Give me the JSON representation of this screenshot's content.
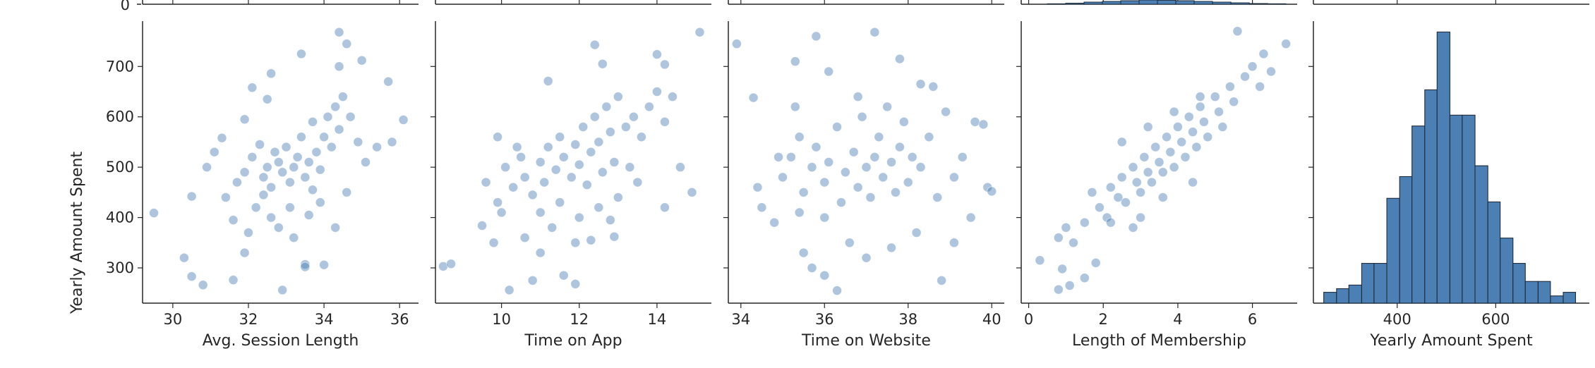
{
  "chart_data": {
    "type": "scatter",
    "ylabel": "Yearly Amount Spent",
    "yticks": [
      300,
      400,
      500,
      600,
      700
    ],
    "ylim": [
      230,
      790
    ],
    "top_row": {
      "visible_tick": "0"
    },
    "point_color": "#4c7fb4",
    "hist_color": "#4c7fb4",
    "panels": [
      {
        "kind": "scatter",
        "xlabel": "Avg. Session Length",
        "xlim": [
          29.2,
          36.5
        ],
        "xticks": [
          "30",
          "32",
          "34",
          "36"
        ],
        "xtick_values": [
          30,
          32,
          34,
          36
        ],
        "points": [
          [
            29.5,
            409
          ],
          [
            30.3,
            320
          ],
          [
            30.5,
            283
          ],
          [
            30.8,
            266
          ],
          [
            31.6,
            276
          ],
          [
            31.9,
            330
          ],
          [
            32.9,
            256
          ],
          [
            33.5,
            307
          ],
          [
            33.5,
            302
          ],
          [
            34.0,
            306
          ],
          [
            31.4,
            440
          ],
          [
            31.7,
            470
          ],
          [
            31.9,
            490
          ],
          [
            32.1,
            520
          ],
          [
            32.3,
            545
          ],
          [
            32.4,
            480
          ],
          [
            32.5,
            500
          ],
          [
            32.6,
            460
          ],
          [
            32.7,
            530
          ],
          [
            32.8,
            510
          ],
          [
            32.9,
            490
          ],
          [
            33.0,
            540
          ],
          [
            33.1,
            470
          ],
          [
            33.2,
            500
          ],
          [
            33.3,
            520
          ],
          [
            33.4,
            560
          ],
          [
            33.5,
            480
          ],
          [
            33.6,
            510
          ],
          [
            33.7,
            590
          ],
          [
            33.8,
            530
          ],
          [
            33.9,
            495
          ],
          [
            34.0,
            560
          ],
          [
            34.1,
            600
          ],
          [
            34.2,
            540
          ],
          [
            34.3,
            620
          ],
          [
            34.4,
            575
          ],
          [
            34.5,
            640
          ],
          [
            34.7,
            600
          ],
          [
            34.9,
            550
          ],
          [
            35.1,
            510
          ],
          [
            35.4,
            540
          ],
          [
            35.7,
            670
          ],
          [
            35.8,
            550
          ],
          [
            36.1,
            594
          ],
          [
            34.4,
            768
          ],
          [
            34.6,
            745
          ],
          [
            34.4,
            700
          ],
          [
            35.0,
            712
          ],
          [
            33.4,
            725
          ],
          [
            32.6,
            686
          ],
          [
            32.1,
            658
          ],
          [
            32.5,
            635
          ],
          [
            31.9,
            595
          ],
          [
            31.3,
            558
          ],
          [
            31.1,
            530
          ],
          [
            30.9,
            500
          ],
          [
            30.5,
            442
          ],
          [
            32.2,
            420
          ],
          [
            32.6,
            400
          ],
          [
            32.8,
            380
          ],
          [
            33.2,
            360
          ],
          [
            33.6,
            405
          ],
          [
            33.9,
            430
          ],
          [
            34.3,
            380
          ],
          [
            34.6,
            450
          ],
          [
            32.0,
            370
          ],
          [
            31.6,
            395
          ],
          [
            32.4,
            445
          ],
          [
            33.1,
            420
          ],
          [
            33.7,
            455
          ]
        ]
      },
      {
        "kind": "scatter",
        "xlabel": "Time on App",
        "xlim": [
          8.3,
          15.4
        ],
        "xticks": [
          "10",
          "12",
          "14"
        ],
        "xtick_values": [
          10,
          12,
          14
        ],
        "points": [
          [
            8.5,
            303
          ],
          [
            8.7,
            308
          ],
          [
            9.5,
            384
          ],
          [
            10.2,
            256
          ],
          [
            10.8,
            275
          ],
          [
            11.0,
            330
          ],
          [
            11.6,
            285
          ],
          [
            11.9,
            268
          ],
          [
            12.3,
            355
          ],
          [
            12.9,
            362
          ],
          [
            9.6,
            470
          ],
          [
            9.9,
            430
          ],
          [
            10.1,
            500
          ],
          [
            10.3,
            460
          ],
          [
            10.5,
            520
          ],
          [
            10.6,
            480
          ],
          [
            10.8,
            445
          ],
          [
            11.0,
            510
          ],
          [
            11.1,
            470
          ],
          [
            11.2,
            540
          ],
          [
            11.4,
            495
          ],
          [
            11.5,
            560
          ],
          [
            11.6,
            520
          ],
          [
            11.8,
            480
          ],
          [
            11.9,
            545
          ],
          [
            12.0,
            505
          ],
          [
            12.1,
            580
          ],
          [
            12.2,
            465
          ],
          [
            12.3,
            530
          ],
          [
            12.4,
            600
          ],
          [
            12.5,
            550
          ],
          [
            12.6,
            490
          ],
          [
            12.7,
            620
          ],
          [
            12.8,
            570
          ],
          [
            12.9,
            510
          ],
          [
            13.0,
            640
          ],
          [
            13.2,
            580
          ],
          [
            13.4,
            600
          ],
          [
            13.6,
            560
          ],
          [
            13.8,
            620
          ],
          [
            14.0,
            650
          ],
          [
            14.2,
            590
          ],
          [
            14.4,
            640
          ],
          [
            14.6,
            500
          ],
          [
            14.9,
            450
          ],
          [
            15.1,
            768
          ],
          [
            14.0,
            724
          ],
          [
            14.2,
            704
          ],
          [
            12.4,
            743
          ],
          [
            12.6,
            705
          ],
          [
            11.2,
            671
          ],
          [
            9.9,
            560
          ],
          [
            10.4,
            540
          ],
          [
            11.0,
            410
          ],
          [
            11.5,
            430
          ],
          [
            12.0,
            400
          ],
          [
            12.5,
            420
          ],
          [
            13.0,
            440
          ],
          [
            13.5,
            470
          ],
          [
            14.2,
            420
          ],
          [
            10.0,
            410
          ],
          [
            10.6,
            360
          ],
          [
            11.3,
            380
          ],
          [
            11.9,
            350
          ],
          [
            12.8,
            395
          ],
          [
            13.3,
            500
          ],
          [
            9.8,
            350
          ]
        ]
      },
      {
        "kind": "scatter",
        "xlabel": "Time on Website",
        "xlim": [
          33.7,
          40.3
        ],
        "xticks": [
          "34",
          "36",
          "38",
          "40"
        ],
        "xtick_values": [
          34,
          36,
          38,
          40
        ],
        "points": [
          [
            33.9,
            745
          ],
          [
            34.3,
            638
          ],
          [
            35.3,
            710
          ],
          [
            35.8,
            760
          ],
          [
            36.1,
            690
          ],
          [
            37.2,
            768
          ],
          [
            37.8,
            715
          ],
          [
            38.3,
            665
          ],
          [
            38.8,
            275
          ],
          [
            36.3,
            255
          ],
          [
            36.0,
            285
          ],
          [
            35.7,
            300
          ],
          [
            35.5,
            330
          ],
          [
            34.4,
            460
          ],
          [
            34.5,
            420
          ],
          [
            34.8,
            390
          ],
          [
            35.0,
            480
          ],
          [
            35.2,
            520
          ],
          [
            35.4,
            560
          ],
          [
            35.5,
            450
          ],
          [
            35.7,
            500
          ],
          [
            35.8,
            540
          ],
          [
            36.0,
            470
          ],
          [
            36.1,
            510
          ],
          [
            36.3,
            580
          ],
          [
            36.4,
            430
          ],
          [
            36.5,
            490
          ],
          [
            36.7,
            530
          ],
          [
            36.8,
            460
          ],
          [
            36.9,
            600
          ],
          [
            37.0,
            500
          ],
          [
            37.1,
            440
          ],
          [
            37.2,
            520
          ],
          [
            37.3,
            560
          ],
          [
            37.4,
            480
          ],
          [
            37.5,
            620
          ],
          [
            37.6,
            510
          ],
          [
            37.7,
            450
          ],
          [
            37.8,
            540
          ],
          [
            37.9,
            590
          ],
          [
            38.0,
            470
          ],
          [
            38.1,
            520
          ],
          [
            38.3,
            500
          ],
          [
            38.5,
            560
          ],
          [
            38.7,
            440
          ],
          [
            38.9,
            610
          ],
          [
            39.1,
            480
          ],
          [
            39.3,
            520
          ],
          [
            39.6,
            590
          ],
          [
            39.9,
            460
          ],
          [
            40.0,
            452
          ],
          [
            39.5,
            400
          ],
          [
            39.1,
            350
          ],
          [
            38.2,
            370
          ],
          [
            37.6,
            340
          ],
          [
            37.0,
            320
          ],
          [
            36.6,
            350
          ],
          [
            36.0,
            400
          ],
          [
            35.4,
            410
          ],
          [
            34.9,
            520
          ],
          [
            35.3,
            620
          ],
          [
            36.8,
            640
          ],
          [
            38.6,
            660
          ],
          [
            39.8,
            585
          ]
        ]
      },
      {
        "kind": "scatter",
        "xlabel": "Length of Membership",
        "xlim": [
          -0.2,
          7.2
        ],
        "xticks": [
          "0",
          "2",
          "4",
          "6"
        ],
        "xtick_values": [
          0,
          2,
          4,
          6
        ],
        "points": [
          [
            0.3,
            315
          ],
          [
            0.8,
            257
          ],
          [
            0.9,
            298
          ],
          [
            1.1,
            265
          ],
          [
            1.5,
            280
          ],
          [
            1.8,
            310
          ],
          [
            0.8,
            360
          ],
          [
            1.2,
            350
          ],
          [
            1.0,
            380
          ],
          [
            1.5,
            390
          ],
          [
            1.7,
            450
          ],
          [
            1.9,
            420
          ],
          [
            2.1,
            400
          ],
          [
            2.2,
            460
          ],
          [
            2.4,
            440
          ],
          [
            2.5,
            480
          ],
          [
            2.6,
            430
          ],
          [
            2.8,
            500
          ],
          [
            2.9,
            470
          ],
          [
            3.0,
            450
          ],
          [
            3.1,
            520
          ],
          [
            3.2,
            490
          ],
          [
            3.3,
            470
          ],
          [
            3.4,
            540
          ],
          [
            3.5,
            510
          ],
          [
            3.6,
            490
          ],
          [
            3.7,
            560
          ],
          [
            3.8,
            530
          ],
          [
            3.9,
            500
          ],
          [
            4.0,
            580
          ],
          [
            4.1,
            550
          ],
          [
            4.2,
            520
          ],
          [
            4.3,
            600
          ],
          [
            4.4,
            570
          ],
          [
            4.5,
            540
          ],
          [
            4.6,
            620
          ],
          [
            4.7,
            590
          ],
          [
            4.8,
            560
          ],
          [
            5.0,
            640
          ],
          [
            5.1,
            610
          ],
          [
            5.2,
            580
          ],
          [
            5.4,
            660
          ],
          [
            5.5,
            630
          ],
          [
            5.8,
            680
          ],
          [
            6.0,
            700
          ],
          [
            6.2,
            660
          ],
          [
            6.5,
            690
          ],
          [
            6.9,
            745
          ],
          [
            5.6,
            770
          ],
          [
            6.3,
            725
          ],
          [
            3.0,
            400
          ],
          [
            3.6,
            440
          ],
          [
            4.4,
            470
          ],
          [
            2.5,
            550
          ],
          [
            3.2,
            580
          ],
          [
            4.6,
            640
          ],
          [
            2.8,
            380
          ],
          [
            2.2,
            390
          ],
          [
            3.9,
            610
          ]
        ]
      },
      {
        "kind": "histogram",
        "xlabel": "Yearly Amount Spent",
        "xlim": [
          230,
          790
        ],
        "xticks": [
          "400",
          "600"
        ],
        "xtick_values": [
          400,
          600
        ],
        "bin_edges": [
          251,
          277,
          302,
          328,
          353,
          379,
          405,
          430,
          456,
          481,
          507,
          532,
          558,
          584,
          609,
          635,
          660,
          686,
          711,
          737,
          762
        ],
        "counts": [
          3,
          4,
          5,
          11,
          11,
          29,
          35,
          49,
          59,
          75,
          52,
          52,
          38,
          28,
          18,
          11,
          6,
          6,
          2,
          3
        ],
        "count_max": 78,
        "top_row_bins": [
          4,
          9,
          18,
          24,
          30,
          36,
          34,
          30,
          24,
          18,
          12,
          6,
          4
        ]
      }
    ]
  }
}
